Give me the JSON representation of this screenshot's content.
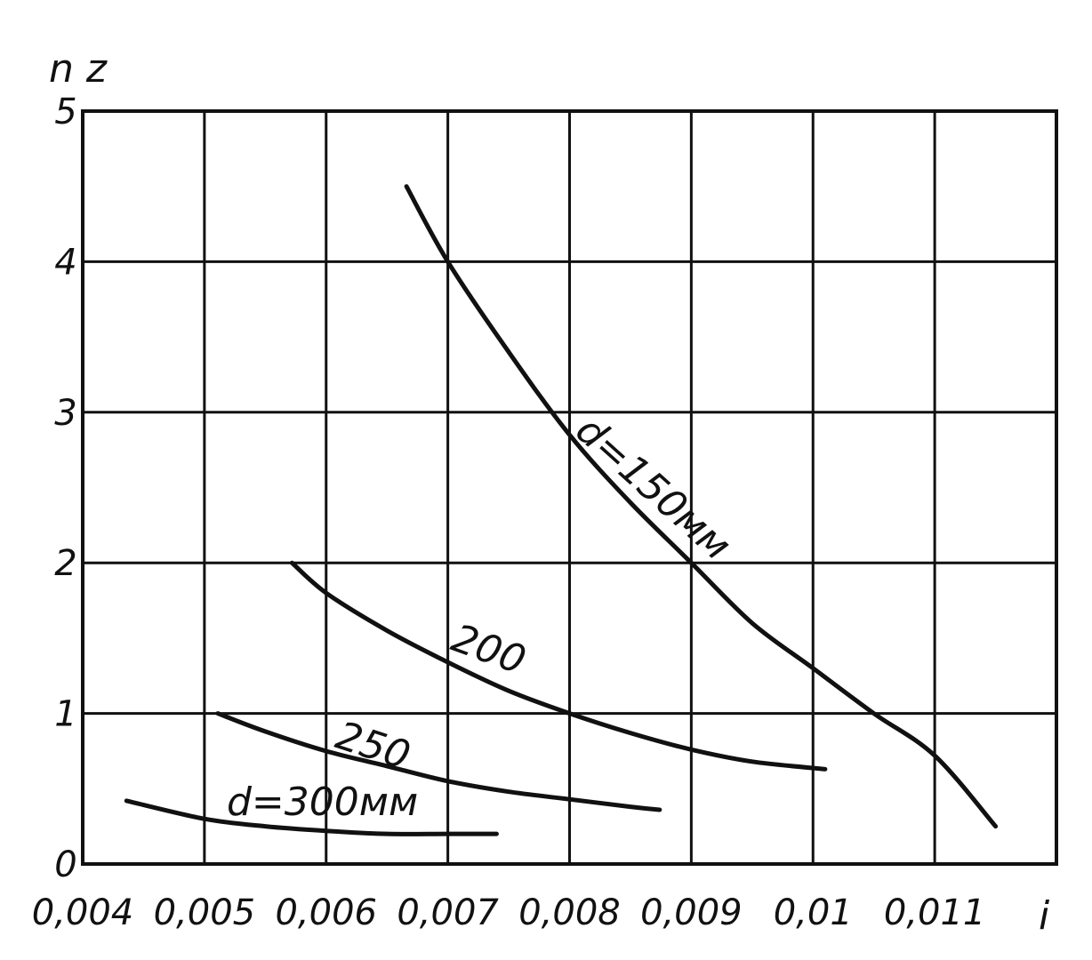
{
  "chart_data": {
    "type": "line",
    "ylabel": "n z",
    "xlabel": "i",
    "xlim": [
      0.004,
      0.011
    ],
    "ylim": [
      0,
      5
    ],
    "x_ticks": [
      "0,004",
      "0,005",
      "0,006",
      "0,007",
      "0,008",
      "0,009",
      "0,01",
      "0,011"
    ],
    "y_ticks": [
      "0",
      "1",
      "2",
      "3",
      "4",
      "5"
    ],
    "grid": true,
    "series": [
      {
        "name": "d=150мм",
        "label": "d=150мм",
        "x": [
          0.00666,
          0.007,
          0.0075,
          0.008,
          0.0085,
          0.009,
          0.0095,
          0.01,
          0.0105,
          0.011,
          0.0115
        ],
        "y": [
          4.5,
          4.0,
          3.4,
          2.85,
          2.4,
          2.0,
          1.6,
          1.3,
          1.0,
          0.72,
          0.25
        ]
      },
      {
        "name": "200",
        "label": "200",
        "x": [
          0.00572,
          0.006,
          0.0065,
          0.007,
          0.0075,
          0.008,
          0.0085,
          0.009,
          0.0095,
          0.0101
        ],
        "y": [
          2.0,
          1.8,
          1.55,
          1.34,
          1.15,
          1.0,
          0.87,
          0.76,
          0.68,
          0.63
        ]
      },
      {
        "name": "250",
        "label": "250",
        "x": [
          0.00511,
          0.0055,
          0.006,
          0.0065,
          0.007,
          0.0075,
          0.008,
          0.0085,
          0.00874
        ],
        "y": [
          1.0,
          0.88,
          0.75,
          0.65,
          0.55,
          0.48,
          0.43,
          0.38,
          0.36
        ]
      },
      {
        "name": "d=300мм",
        "label": "d=300мм",
        "x": [
          0.00436,
          0.005,
          0.0055,
          0.006,
          0.0065,
          0.007,
          0.0074
        ],
        "y": [
          0.42,
          0.3,
          0.25,
          0.22,
          0.2,
          0.2,
          0.2
        ]
      }
    ]
  }
}
